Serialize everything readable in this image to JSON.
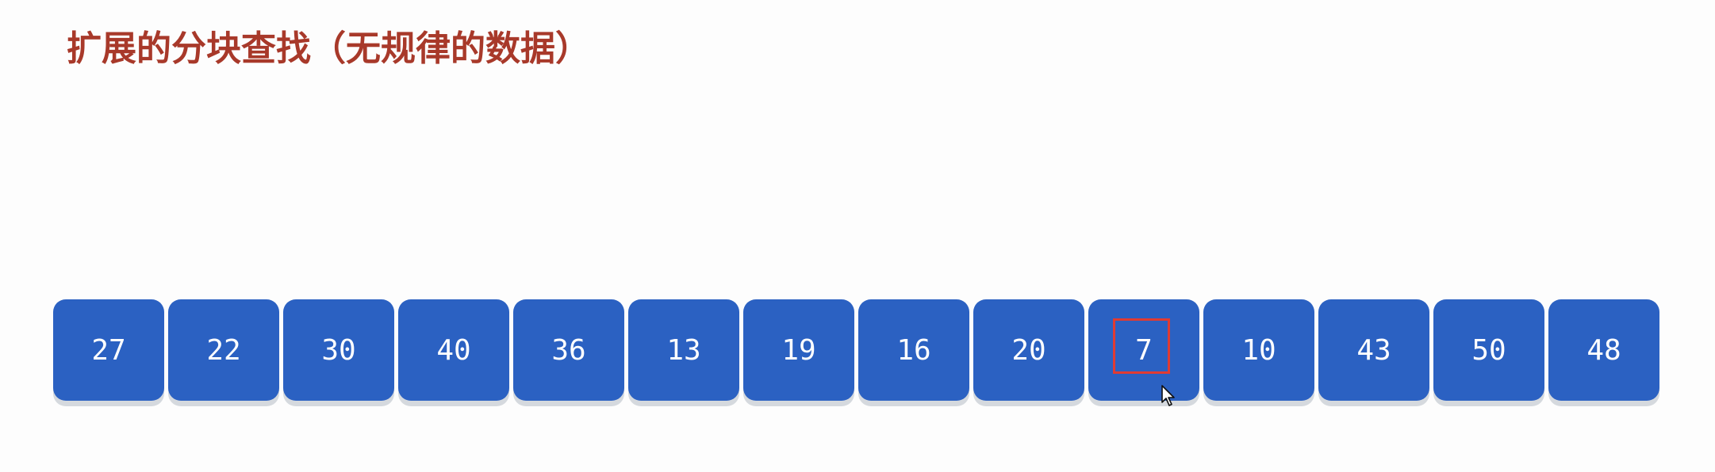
{
  "title": "扩展的分块查找（无规律的数据）",
  "array": {
    "values": [
      "27",
      "22",
      "30",
      "40",
      "36",
      "13",
      "19",
      "16",
      "20",
      "7",
      "10",
      "43",
      "50",
      "48"
    ],
    "highlighted_index": 9
  },
  "colors": {
    "cell": "#2b61c2",
    "title": "#a8392a",
    "highlight": "#e03b32"
  }
}
